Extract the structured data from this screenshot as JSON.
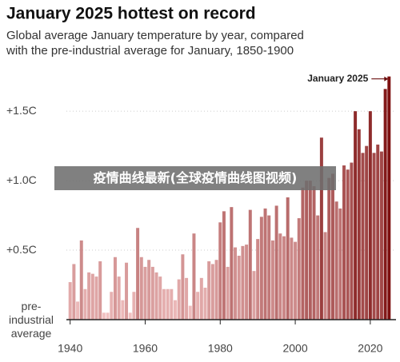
{
  "chart_data": {
    "type": "bar",
    "title": "January 2025 hottest on record",
    "subtitle": [
      "Global average January temperature by year, compared",
      "with the pre-industrial average for January, 1850-1900"
    ],
    "annotation": "January 2025",
    "overlay": "疫情曲线最新(全球疫情曲线图视频)",
    "x": [
      1940,
      1941,
      1942,
      1943,
      1944,
      1945,
      1946,
      1947,
      1948,
      1949,
      1950,
      1951,
      1952,
      1953,
      1954,
      1955,
      1956,
      1957,
      1958,
      1959,
      1960,
      1961,
      1962,
      1963,
      1964,
      1965,
      1966,
      1967,
      1968,
      1969,
      1970,
      1971,
      1972,
      1973,
      1974,
      1975,
      1976,
      1977,
      1978,
      1979,
      1980,
      1981,
      1982,
      1983,
      1984,
      1985,
      1986,
      1987,
      1988,
      1989,
      1990,
      1991,
      1992,
      1993,
      1994,
      1995,
      1996,
      1997,
      1998,
      1999,
      2000,
      2001,
      2002,
      2003,
      2004,
      2005,
      2006,
      2007,
      2008,
      2009,
      2010,
      2011,
      2012,
      2013,
      2014,
      2015,
      2016,
      2017,
      2018,
      2019,
      2020,
      2021,
      2022,
      2023,
      2024,
      2025
    ],
    "values": [
      0.27,
      0.4,
      0.13,
      0.57,
      0.22,
      0.34,
      0.33,
      0.31,
      0.42,
      0.05,
      0.05,
      0.2,
      0.45,
      0.31,
      0.14,
      0.41,
      0.05,
      0.2,
      0.66,
      0.45,
      0.38,
      0.43,
      0.38,
      0.34,
      0.31,
      0.22,
      0.22,
      0.22,
      0.14,
      0.29,
      0.47,
      0.3,
      0.1,
      0.62,
      0.2,
      0.3,
      0.23,
      0.42,
      0.4,
      0.43,
      0.7,
      0.78,
      0.38,
      0.81,
      0.52,
      0.46,
      0.53,
      0.54,
      0.79,
      0.35,
      0.58,
      0.74,
      0.8,
      0.75,
      0.57,
      0.82,
      0.62,
      0.6,
      0.88,
      0.59,
      0.56,
      0.73,
      0.95,
      1.0,
      1.0,
      0.96,
      0.75,
      1.31,
      0.63,
      1.02,
      1.05,
      0.85,
      0.8,
      1.11,
      1.08,
      1.13,
      1.5,
      1.37,
      1.2,
      1.25,
      1.5,
      1.2,
      1.26,
      1.21,
      1.66,
      1.75
    ],
    "color_scale": [
      "#f4c6c6",
      "#7a0c0c"
    ],
    "xlim": [
      1939,
      2026
    ],
    "xticks": [
      1940,
      1960,
      1980,
      2000,
      2020
    ],
    "ylim": [
      0,
      1.8
    ],
    "yticks": [
      {
        "value": 0,
        "label": "pre-industrial average"
      },
      {
        "value": 0.5,
        "label": "+0.5C"
      },
      {
        "value": 1.0,
        "label": "+1.0C"
      },
      {
        "value": 1.5,
        "label": "+1.5C"
      }
    ],
    "grid": true
  }
}
